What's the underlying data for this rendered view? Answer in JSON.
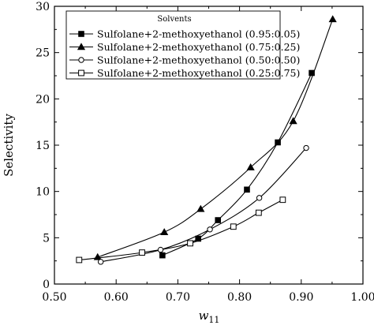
{
  "chart_data": {
    "type": "scatter",
    "xlabel": "w",
    "xlabel_sub": "11",
    "ylabel": "Selectivity",
    "xlim": [
      0.5,
      1.0
    ],
    "ylim": [
      0,
      30
    ],
    "x_ticks": [
      0.5,
      0.6,
      0.7,
      0.8,
      0.9,
      1.0
    ],
    "x_tick_labels": [
      "0.50",
      "0.60",
      "0.70",
      "0.80",
      "0.90",
      "1.00"
    ],
    "y_ticks": [
      0,
      5,
      10,
      15,
      20,
      25,
      30
    ],
    "y_tick_labels": [
      "0",
      "5",
      "10",
      "15",
      "20",
      "25",
      "30"
    ],
    "grid": false,
    "legend": {
      "title": "Solvents",
      "placement": "top-left"
    },
    "series": [
      {
        "name": "Sulfolane+2-methoxyethanol (0.95:0.05)",
        "marker": "square-filled",
        "x": [
          0.675,
          0.733,
          0.765,
          0.812,
          0.862,
          0.917
        ],
        "y": [
          3.1,
          4.9,
          6.9,
          10.2,
          15.3,
          22.8
        ]
      },
      {
        "name": "Sulfolane+2-methoxyethanol (0.75:0.25)",
        "marker": "triangle-filled",
        "x": [
          0.57,
          0.678,
          0.737,
          0.818,
          0.887,
          0.951
        ],
        "y": [
          2.9,
          5.6,
          8.1,
          12.6,
          17.6,
          28.6
        ]
      },
      {
        "name": "Sulfolane+2-methoxyethanol (0.50:0.50)",
        "marker": "circle-open",
        "x": [
          0.575,
          0.672,
          0.752,
          0.832,
          0.908
        ],
        "y": [
          2.4,
          3.7,
          5.9,
          9.3,
          14.7
        ]
      },
      {
        "name": "Sulfolane+2-methoxyethanol (0.25:0.75)",
        "marker": "square-open",
        "x": [
          0.54,
          0.642,
          0.72,
          0.79,
          0.831,
          0.87
        ],
        "y": [
          2.6,
          3.4,
          4.4,
          6.2,
          7.7,
          9.1
        ]
      }
    ]
  }
}
